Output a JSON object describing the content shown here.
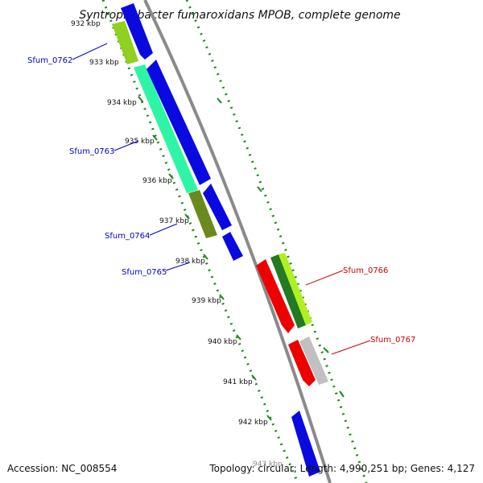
{
  "title": "Syntrophobacter fumaroxidans MPOB, complete genome",
  "ticks": [
    "932 kbp",
    "933 kbp",
    "934 kbp",
    "935 kbp",
    "936 kbp",
    "937 kbp",
    "938 kbp",
    "939 kbp",
    "940 kbp",
    "941 kbp",
    "942 kbp",
    "943 kbp"
  ],
  "genes": [
    {
      "name": "Sfum_0762",
      "strand": "left",
      "color": "#0000cc"
    },
    {
      "name": "Sfum_0763",
      "strand": "left",
      "color": "#0000cc"
    },
    {
      "name": "Sfum_0764",
      "strand": "left",
      "color": "#0000cc"
    },
    {
      "name": "Sfum_0765",
      "strand": "left",
      "color": "#0000cc"
    },
    {
      "name": "Sfum_0766",
      "strand": "right",
      "color": "#cc0000"
    },
    {
      "name": "Sfum_0767",
      "strand": "right",
      "color": "#cc0000"
    }
  ],
  "colors": {
    "backbone": "#888888",
    "forward_strand": "#0000dd",
    "reverse_strand": "#ee0000",
    "cog_track": "#22aa22"
  },
  "footer": {
    "accession": "Accession: NC_008554",
    "stats": "Topology: circular; Length: 4,990,251 bp; Genes: 4,127"
  }
}
